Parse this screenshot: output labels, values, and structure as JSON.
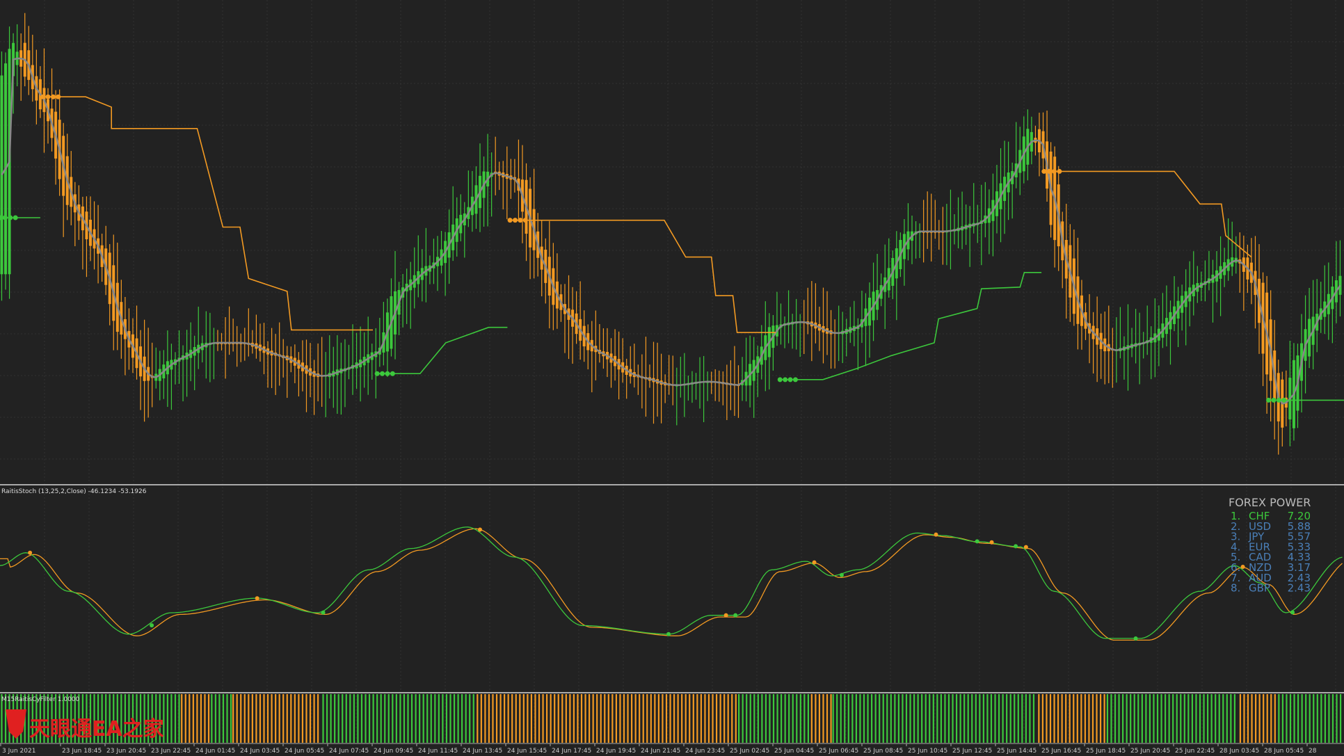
{
  "indicators": {
    "stoch_label": "RaitisStoch (13,25,2,Close) -46.1234 -53.1926",
    "filter_label": "M15RaitisCyFilter 1.0000"
  },
  "watermark": "天眼通EA之家",
  "forex_power": {
    "title": "FOREX POWER",
    "rows": [
      {
        "rank": "1.",
        "currency": "CHF",
        "value": "7.20"
      },
      {
        "rank": "2.",
        "currency": "USD",
        "value": "5.88"
      },
      {
        "rank": "3.",
        "currency": "JPY",
        "value": "5.57"
      },
      {
        "rank": "4.",
        "currency": "EUR",
        "value": "5.33"
      },
      {
        "rank": "5.",
        "currency": "CAD",
        "value": "4.33"
      },
      {
        "rank": "6.",
        "currency": "NZD",
        "value": "3.17"
      },
      {
        "rank": "7.",
        "currency": "AUD",
        "value": "2.43"
      },
      {
        "rank": "8.",
        "currency": "GBP",
        "value": "2.43"
      }
    ]
  },
  "time_axis": [
    "3 Jun 2021",
    "23 Jun 18:45",
    "23 Jun 20:45",
    "23 Jun 22:45",
    "24 Jun 01:45",
    "24 Jun 03:45",
    "24 Jun 05:45",
    "24 Jun 07:45",
    "24 Jun 09:45",
    "24 Jun 11:45",
    "24 Jun 13:45",
    "24 Jun 15:45",
    "24 Jun 17:45",
    "24 Jun 19:45",
    "24 Jun 21:45",
    "24 Jun 23:45",
    "25 Jun 02:45",
    "25 Jun 04:45",
    "25 Jun 06:45",
    "25 Jun 08:45",
    "25 Jun 10:45",
    "25 Jun 12:45",
    "25 Jun 14:45",
    "25 Jun 16:45",
    "25 Jun 18:45",
    "25 Jun 20:45",
    "25 Jun 22:45",
    "28 Jun 03:45",
    "28 Jun 05:45",
    "28"
  ]
}
